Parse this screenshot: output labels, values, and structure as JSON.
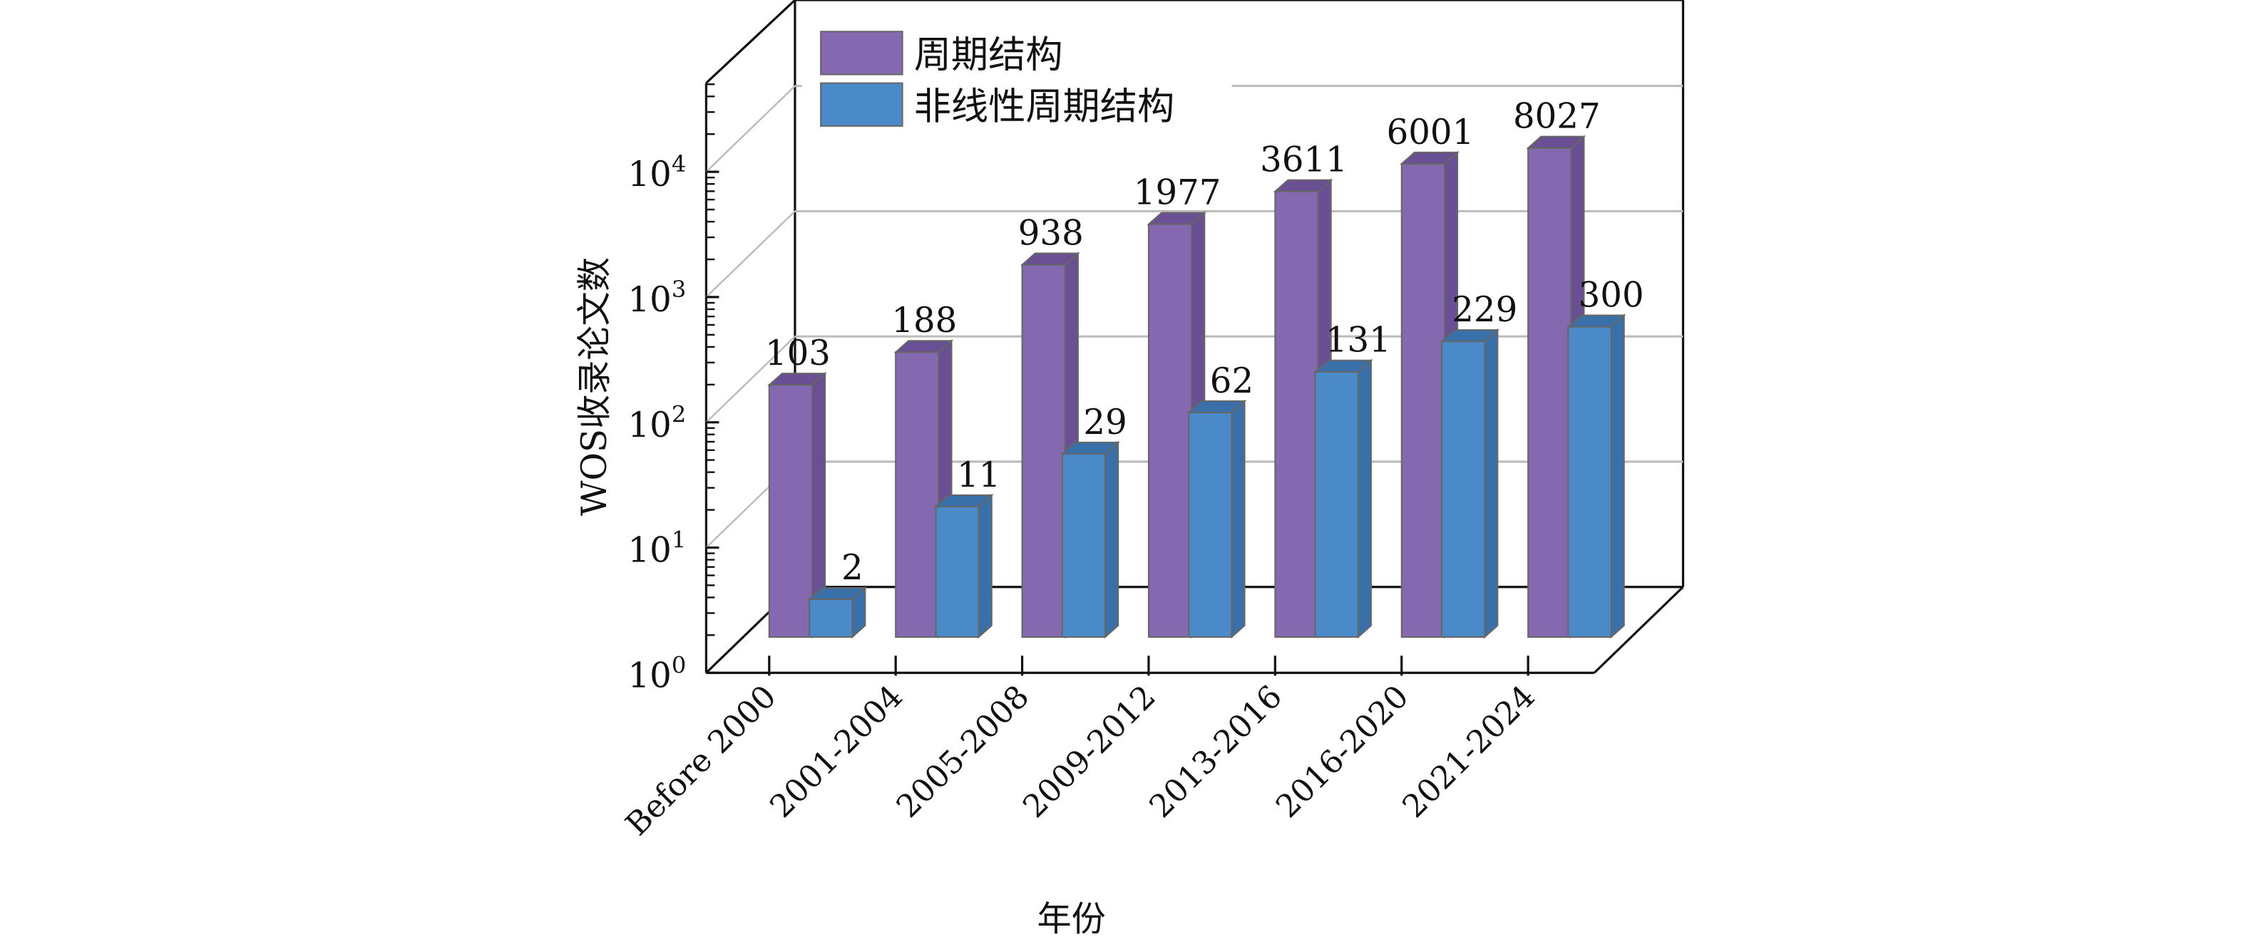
{
  "chart_data": {
    "type": "bar",
    "style": "3d-clustered",
    "title": "",
    "xlabel": "年份",
    "ylabel": "WOS收录论文数",
    "yscale": "log",
    "ylim": [
      1,
      100000
    ],
    "yticks": [
      {
        "base": "10",
        "exp": "0"
      },
      {
        "base": "10",
        "exp": "1"
      },
      {
        "base": "10",
        "exp": "2"
      },
      {
        "base": "10",
        "exp": "3"
      },
      {
        "base": "10",
        "exp": "4"
      }
    ],
    "categories": [
      "Before 2000",
      "2001-2004",
      "2005-2008",
      "2009-2012",
      "2013-2016",
      "2016-2020",
      "2021-2024"
    ],
    "series": [
      {
        "name": "周期结构",
        "color": "#8468B0",
        "side": "#6A4F94",
        "values": [
          103,
          188,
          938,
          1977,
          3611,
          6001,
          8027
        ]
      },
      {
        "name": "非线性周期结构",
        "color": "#4A8AC8",
        "side": "#3A70AA",
        "values": [
          2,
          11,
          29,
          62,
          131,
          229,
          300
        ]
      }
    ],
    "legend_position": "top-left",
    "grid": true
  }
}
